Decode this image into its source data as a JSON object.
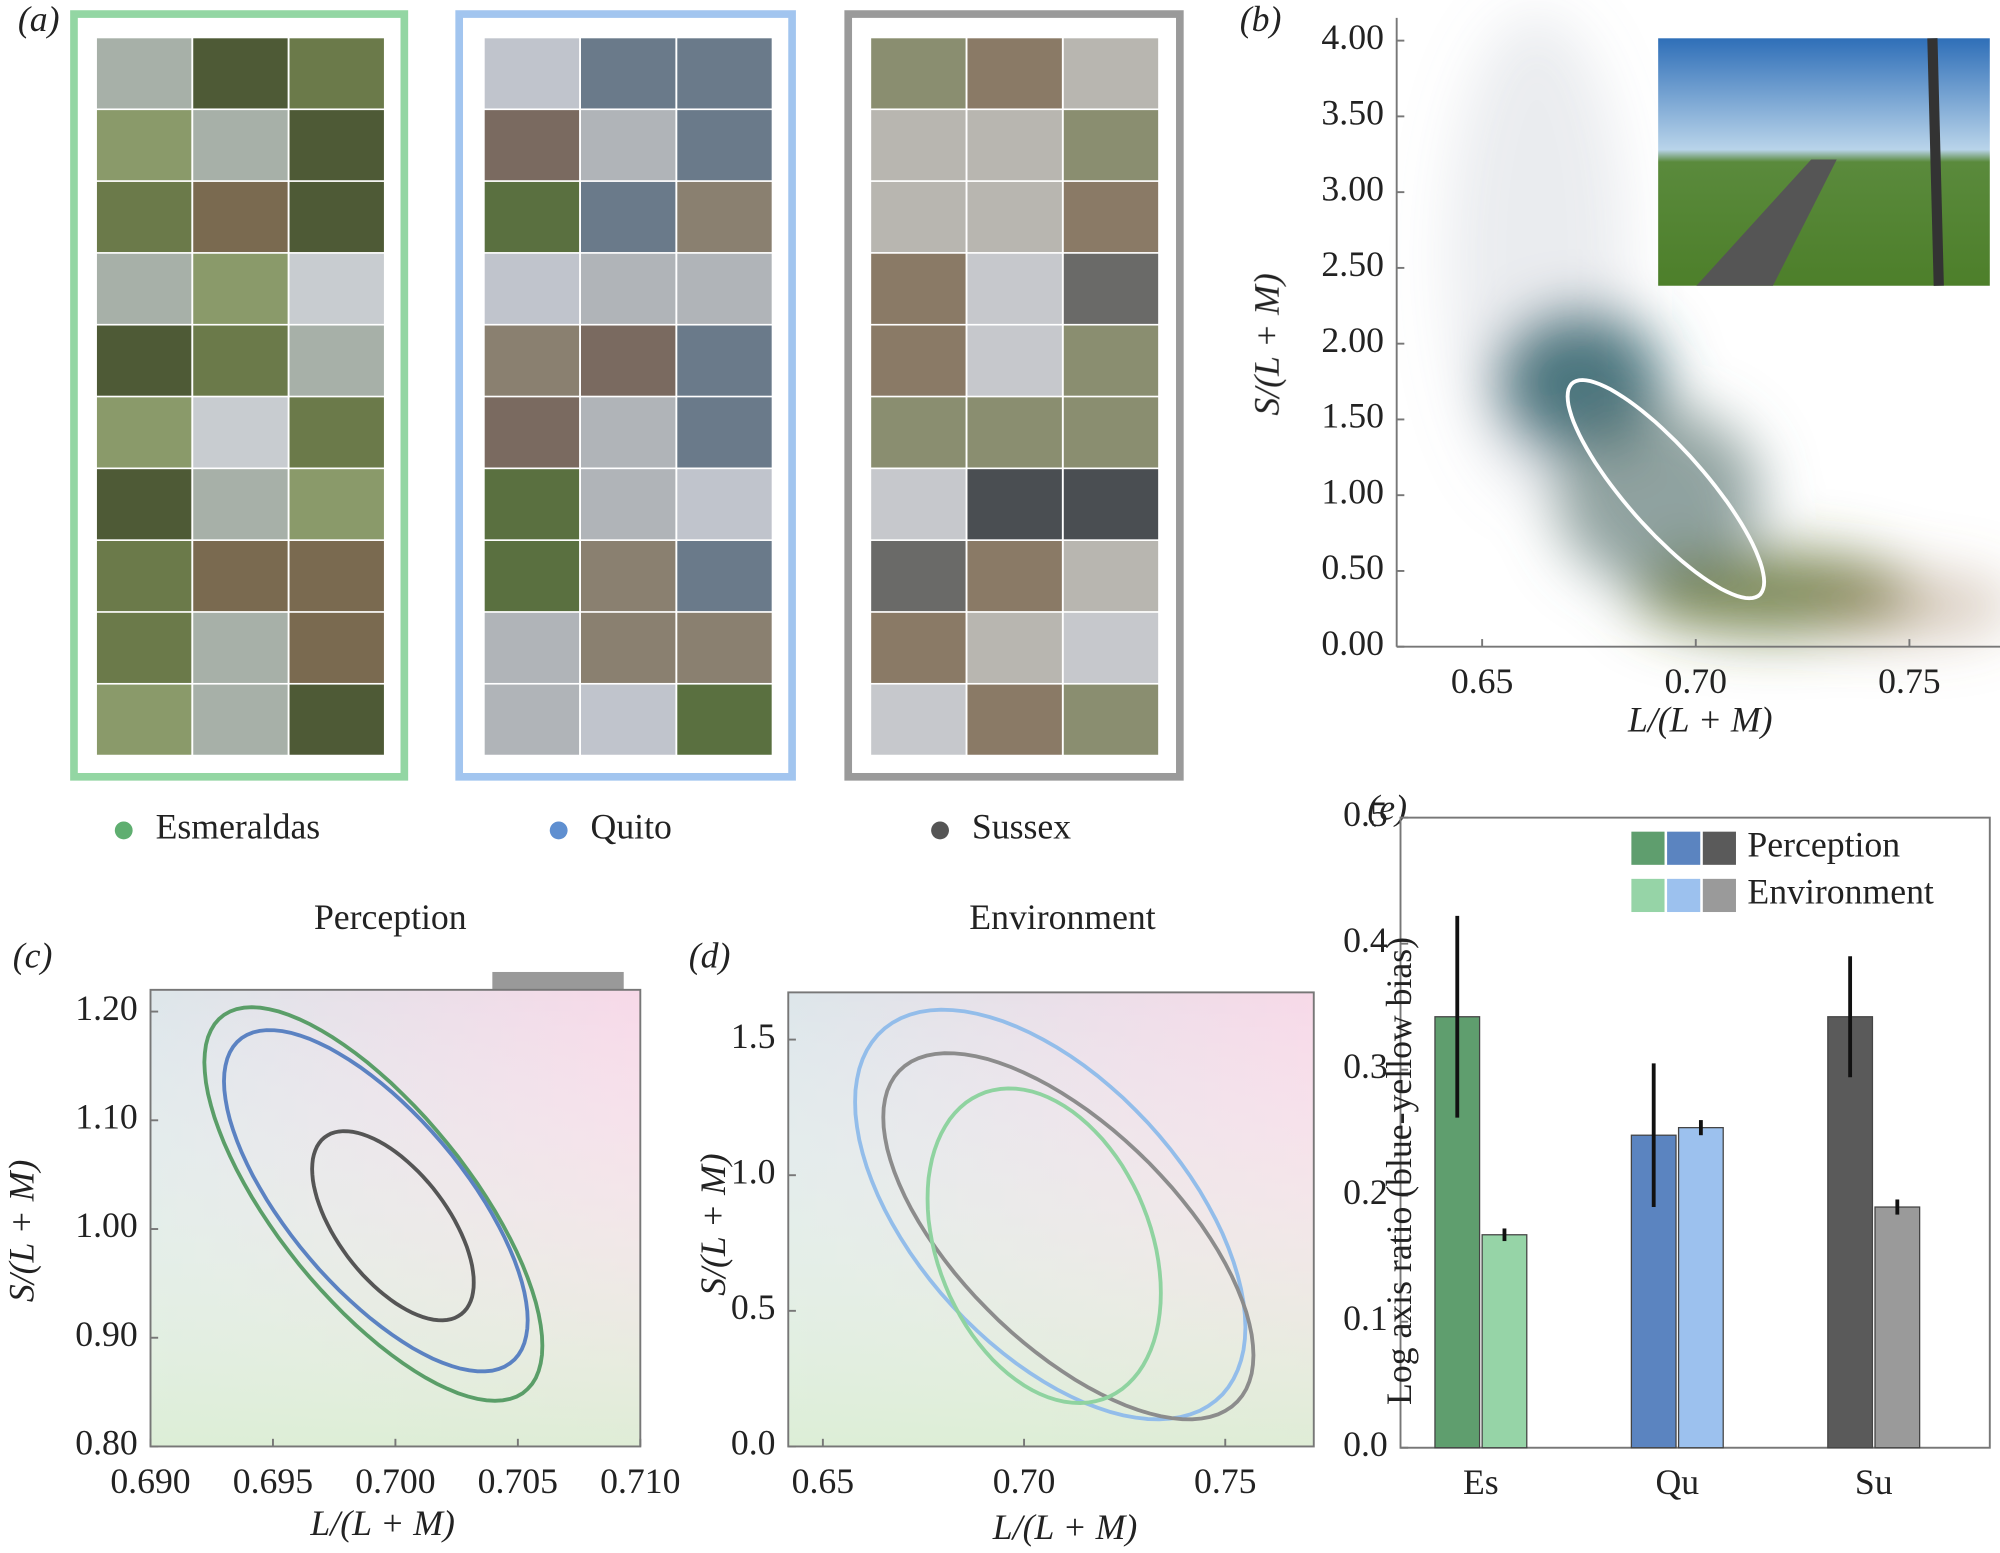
{
  "panel_labels": [
    "(a)",
    "(b)",
    "(c)",
    "(d)",
    "(e)"
  ],
  "sites": [
    {
      "name": "Esmeraldas",
      "color": "#5fae70",
      "frame_color": "#93d6a3"
    },
    {
      "name": "Quito",
      "color": "#5f8fd0",
      "frame_color": "#a2c5ef"
    },
    {
      "name": "Sussex",
      "color": "#555555",
      "frame_color": "#9a9a9a"
    }
  ],
  "chart_data": [
    {
      "type": "density",
      "xlabel": "L/(L + M)",
      "ylabel": "S/(L + M)",
      "xlim": [
        0.63,
        0.7712
      ],
      "ylim": [
        0,
        4.15
      ],
      "xticks": [
        0.65,
        {
          "value": 0.7,
          "label": "0.70"
        },
        0.75
      ],
      "yticks": [
        {
          "value": 0,
          "label": "0.00"
        },
        {
          "value": 0.5,
          "label": "0.50"
        },
        {
          "value": 1,
          "label": "1.00"
        },
        {
          "value": 1.5,
          "label": "1.50"
        },
        {
          "value": 2,
          "label": "2.00"
        },
        {
          "value": 2.5,
          "label": "2.50"
        },
        {
          "value": 3,
          "label": "3.00"
        },
        {
          "value": 3.5,
          "label": "3.50"
        },
        {
          "value": 4,
          "label": "4.00"
        }
      ],
      "ellipses": [
        {
          "center": [
            0.693,
            1.04
          ],
          "x_radius": 0.023,
          "y_radius": 0.72,
          "correlation": -0.85,
          "color": "#ffffff"
        }
      ]
    },
    {
      "type": "ellipse",
      "title": "Perception",
      "xlabel": "L/(L + M)",
      "ylabel": "S/(L + M)",
      "xlim": [
        0.69,
        0.71
      ],
      "ylim": [
        0.8,
        1.22
      ],
      "xticks": [
        {
          "value": 0.69,
          "label": "0.690"
        },
        0.695,
        {
          "value": 0.7,
          "label": "0.700"
        },
        0.705,
        {
          "value": 0.71,
          "label": "0.710"
        }
      ],
      "yticks": [
        {
          "value": 0.8,
          "label": "0.80"
        },
        {
          "value": 0.9,
          "label": "0.90"
        },
        {
          "value": 1.0,
          "label": "1.00"
        },
        {
          "value": 1.1,
          "label": "1.10"
        },
        {
          "value": 1.2,
          "label": "1.20"
        }
      ],
      "ellipses": [
        {
          "center": [
            0.6991,
            1.023
          ],
          "x_radius": 0.0069,
          "y_radius": 0.181,
          "correlation": -0.72,
          "color": "#5a9e68"
        },
        {
          "center": [
            0.6992,
            1.026
          ],
          "x_radius": 0.0062,
          "y_radius": 0.157,
          "correlation": -0.7,
          "color": "#5b82c2"
        },
        {
          "center": [
            0.6999,
            1.003
          ],
          "x_radius": 0.0033,
          "y_radius": 0.087,
          "correlation": -0.6,
          "color": "#555555"
        }
      ]
    },
    {
      "type": "ellipse",
      "title": "Environment",
      "xlabel": "L/(L + M)",
      "ylabel": "S/(L + M)",
      "xlim": [
        0.6414,
        0.772
      ],
      "ylim": [
        0,
        1.674
      ],
      "xticks": [
        0.65,
        {
          "value": 0.7,
          "label": "0.70"
        },
        0.75
      ],
      "yticks": [
        {
          "value": 0,
          "label": "0.0"
        },
        0.5,
        {
          "value": 1,
          "label": "1.0"
        },
        1.5
      ],
      "ellipses": [
        {
          "center": [
            0.7065,
            0.855
          ],
          "x_radius": 0.0485,
          "y_radius": 0.755,
          "correlation": -0.55,
          "color": "#93bdea"
        },
        {
          "center": [
            0.711,
            0.775
          ],
          "x_radius": 0.046,
          "y_radius": 0.675,
          "correlation": -0.65,
          "color": "#8c8c8c"
        },
        {
          "center": [
            0.705,
            0.74
          ],
          "x_radius": 0.029,
          "y_radius": 0.58,
          "correlation": -0.3,
          "color": "#8fd3a0"
        }
      ]
    },
    {
      "type": "bar",
      "ylabel": "Log axis ratio (blue-yellow bias)",
      "categories": [
        "Es",
        "Qu",
        "Su"
      ],
      "ylim": [
        0,
        0.5
      ],
      "yticks": [
        {
          "value": 0,
          "label": "0.0"
        },
        0.1,
        0.2,
        0.3,
        0.4,
        0.5
      ],
      "series": [
        {
          "name": "Perception",
          "colors": [
            "#5f9e6e",
            "#5b84c0",
            "#5a5a5a"
          ],
          "values": [
            0.342,
            0.248,
            0.342
          ],
          "errors": [
            0.08,
            0.057,
            0.048
          ]
        },
        {
          "name": "Environment",
          "colors": [
            "#96d4a7",
            "#9cc1ee",
            "#9a9a9a"
          ],
          "values": [
            0.169,
            0.254,
            0.191
          ],
          "errors": [
            0.005,
            0.006,
            0.006
          ]
        }
      ],
      "legend": "upper right"
    }
  ]
}
